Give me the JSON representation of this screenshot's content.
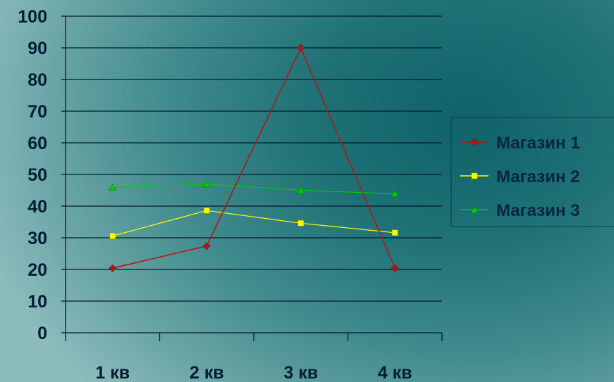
{
  "chart_data": {
    "type": "line",
    "categories": [
      "1 кв",
      "2 кв",
      "3 кв",
      "4 кв"
    ],
    "ylim": [
      0,
      100
    ],
    "yticks": [
      "0",
      "10",
      "20",
      "30",
      "40",
      "50",
      "60",
      "70",
      "80",
      "90",
      "100"
    ],
    "grid": true,
    "legend_position": "right",
    "series": [
      {
        "name": "Магазин 1",
        "values": [
          20.4,
          27.4,
          90,
          20.4
        ],
        "color": "#b01818",
        "marker": "diamond"
      },
      {
        "name": "Магазин 2",
        "values": [
          30.6,
          38.6,
          34.6,
          31.6
        ],
        "color": "#ffff00",
        "marker": "square"
      },
      {
        "name": "Магазин 3",
        "values": [
          45.9,
          46.9,
          45,
          43.9
        ],
        "color": "#00cc00",
        "marker": "triangle"
      }
    ]
  }
}
